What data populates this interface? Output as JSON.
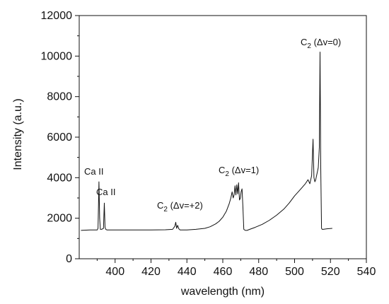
{
  "chart_data": {
    "type": "line",
    "title": "",
    "xlabel": "wavelength (nm)",
    "ylabel": "Intensity (a.u.)",
    "xlim": [
      380,
      540
    ],
    "ylim": [
      0,
      12000
    ],
    "x_ticks": [
      "400",
      "420",
      "440",
      "460",
      "480",
      "500",
      "520",
      "540"
    ],
    "y_ticks": [
      "0",
      "2000",
      "4000",
      "6000",
      "8000",
      "10000",
      "12000"
    ],
    "grid": false,
    "legend": "none",
    "line_color": "#111111",
    "series": [
      {
        "x": [
          381,
          386,
          390,
          390.5,
          391,
          391.4,
          391.8,
          392.5,
          393.5,
          394,
          394.4,
          394.8,
          395.5,
          400,
          410,
          420,
          428,
          432,
          433.3,
          433.8,
          434.3,
          434.8,
          435.5,
          436.2,
          437,
          440,
          445,
          450,
          453,
          456,
          458,
          460,
          462,
          463.5,
          464.5,
          465.2,
          465.8,
          466.3,
          466.8,
          467.3,
          467.8,
          468.3,
          468.8,
          469.3,
          469.8,
          470.2,
          470.7,
          471.2,
          471.7,
          472.2,
          472.7,
          473.5,
          475,
          478,
          482,
          486,
          490,
          494,
          497,
          500,
          502,
          504,
          506,
          507.5,
          508.5,
          509.5,
          510.3,
          510.8,
          511.3,
          511.8,
          512.5,
          513.2,
          513.8,
          514.2,
          514.6,
          515,
          515.4,
          516,
          518,
          521
        ],
        "y": [
          1400,
          1420,
          1420,
          1500,
          3800,
          2000,
          1450,
          1450,
          1500,
          2750,
          1550,
          1450,
          1420,
          1420,
          1420,
          1420,
          1430,
          1450,
          1600,
          1800,
          1500,
          1650,
          1480,
          1420,
          1420,
          1420,
          1450,
          1500,
          1580,
          1720,
          1850,
          2050,
          2350,
          2700,
          3000,
          3300,
          3000,
          3150,
          3600,
          3150,
          3650,
          3200,
          3750,
          2900,
          3000,
          3300,
          3450,
          2600,
          1450,
          1420,
          1400,
          1400,
          1450,
          1550,
          1700,
          1900,
          2150,
          2450,
          2750,
          3100,
          3300,
          3500,
          3700,
          3900,
          3700,
          4100,
          5900,
          4000,
          3800,
          3900,
          4200,
          4500,
          5500,
          10200,
          4500,
          1500,
          1450,
          1450,
          1480,
          1500
        ]
      }
    ],
    "annotations": [
      {
        "main": "Ca II",
        "sub": "",
        "rest": ""
      },
      {
        "main": "Ca II",
        "sub": "",
        "rest": ""
      },
      {
        "main": "C",
        "sub": "2",
        "rest": " (Δv=+2)"
      },
      {
        "main": "C",
        "sub": "2",
        "rest": " (Δv=1)"
      },
      {
        "main": "C",
        "sub": "2",
        "rest": " (Δv=0)"
      }
    ]
  }
}
